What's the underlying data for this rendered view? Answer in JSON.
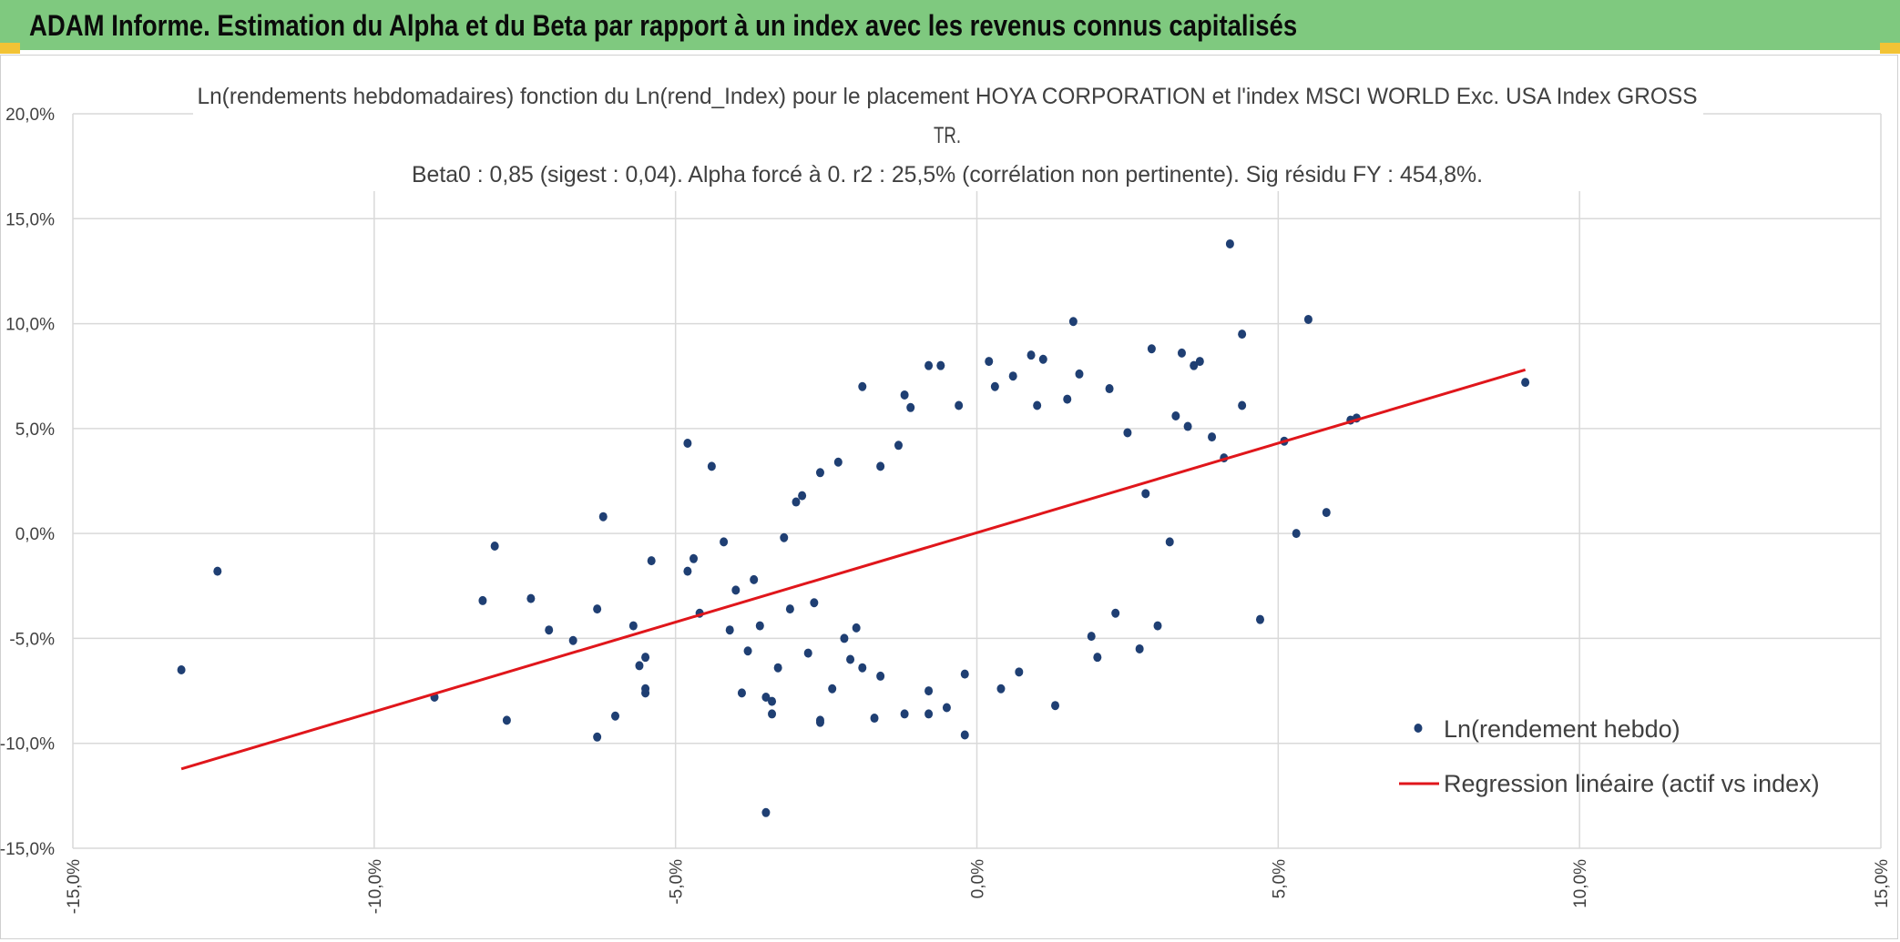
{
  "header": {
    "title": "ADAM Informe. Estimation du Alpha et du Beta par rapport à un index avec les revenus connus capitalisés",
    "background": "#7fc97f"
  },
  "chart_data": {
    "type": "scatter",
    "title_lines": [
      "Ln(rendements hebdomadaires) fonction du Ln(rend_Index) pour le placement HOYA CORPORATION et l'index MSCI WORLD Exc. USA Index GROSS",
      "TR.",
      "Beta0 : 0,85 (sigest : 0,04). Alpha forcé à 0. r2 : 25,5% (corrélation non pertinente). Sig résidu FY : 454,8%."
    ],
    "xlim": [
      -15,
      15
    ],
    "ylim": [
      -15,
      20
    ],
    "x_ticks": [
      -15,
      -10,
      -5,
      0,
      5,
      10,
      15
    ],
    "y_ticks": [
      -15,
      -10,
      -5,
      0,
      5,
      10,
      15,
      20
    ],
    "x_tick_labels": [
      "-15,0%",
      "-10,0%",
      "-5,0%",
      "0,0%",
      "5,0%",
      "10,0%",
      "15,0%"
    ],
    "y_tick_labels": [
      "-15,0%",
      "-10,0%",
      "-5,0%",
      "0,0%",
      "5,0%",
      "10,0%",
      "15,0%",
      "20,0%"
    ],
    "grid": true,
    "legend_position": "bottom-right",
    "series": [
      {
        "name": "Ln(rendement hebdo)",
        "kind": "scatter",
        "color": "#1f3f73",
        "points": [
          [
            -13.2,
            -6.5
          ],
          [
            -12.6,
            -1.8
          ],
          [
            -9.0,
            -7.8
          ],
          [
            -8.2,
            -3.2
          ],
          [
            -8.0,
            -0.6
          ],
          [
            -7.8,
            -8.9
          ],
          [
            -7.4,
            -3.1
          ],
          [
            -7.1,
            -4.6
          ],
          [
            -6.7,
            -5.1
          ],
          [
            -6.3,
            -3.6
          ],
          [
            -6.2,
            0.8
          ],
          [
            -6.3,
            -9.7
          ],
          [
            -6.0,
            -8.7
          ],
          [
            -5.7,
            -4.4
          ],
          [
            -5.6,
            -6.3
          ],
          [
            -5.5,
            -5.9
          ],
          [
            -5.5,
            -7.6
          ],
          [
            -5.5,
            -7.4
          ],
          [
            -5.4,
            -1.3
          ],
          [
            -4.8,
            4.3
          ],
          [
            -4.8,
            -1.8
          ],
          [
            -4.7,
            -1.2
          ],
          [
            -4.6,
            -3.8
          ],
          [
            -4.4,
            3.2
          ],
          [
            -4.2,
            -0.4
          ],
          [
            -4.1,
            -4.6
          ],
          [
            -3.9,
            -7.6
          ],
          [
            -3.8,
            -5.6
          ],
          [
            -3.5,
            -7.8
          ],
          [
            -3.6,
            -4.4
          ],
          [
            -3.5,
            -13.3
          ],
          [
            -3.4,
            -8.6
          ],
          [
            -3.4,
            -8.0
          ],
          [
            -3.3,
            -6.4
          ],
          [
            -3.1,
            -3.6
          ],
          [
            -3.0,
            1.5
          ],
          [
            -2.9,
            1.8
          ],
          [
            -2.8,
            -5.7
          ],
          [
            -2.6,
            -8.9
          ],
          [
            -2.6,
            -9.0
          ],
          [
            -2.4,
            -7.4
          ],
          [
            -2.3,
            3.4
          ],
          [
            -2.1,
            -6.0
          ],
          [
            -2.0,
            -4.5
          ],
          [
            -1.9,
            7.0
          ],
          [
            -1.7,
            -8.8
          ],
          [
            -1.6,
            -6.8
          ],
          [
            -1.6,
            3.2
          ],
          [
            -1.2,
            6.6
          ],
          [
            -1.1,
            6.0
          ],
          [
            -1.2,
            -8.6
          ],
          [
            -0.8,
            -7.5
          ],
          [
            -0.8,
            -8.6
          ],
          [
            -0.8,
            8.0
          ],
          [
            -0.6,
            8.0
          ],
          [
            -0.5,
            -8.3
          ],
          [
            -0.2,
            -9.6
          ],
          [
            0.2,
            8.2
          ],
          [
            0.4,
            -7.4
          ],
          [
            0.6,
            7.5
          ],
          [
            0.9,
            8.5
          ],
          [
            1.1,
            8.3
          ],
          [
            1.3,
            -8.2
          ],
          [
            1.5,
            6.4
          ],
          [
            1.6,
            10.1
          ],
          [
            2.0,
            -5.9
          ],
          [
            2.7,
            -5.5
          ],
          [
            3.0,
            -4.4
          ],
          [
            3.2,
            -0.4
          ],
          [
            3.4,
            8.6
          ],
          [
            3.6,
            8.0
          ],
          [
            3.7,
            8.2
          ],
          [
            4.2,
            13.8
          ],
          [
            4.4,
            9.5
          ],
          [
            4.4,
            6.1
          ],
          [
            4.7,
            -4.1
          ],
          [
            5.1,
            4.4
          ],
          [
            5.3,
            0.0
          ],
          [
            5.5,
            10.2
          ],
          [
            5.8,
            1.0
          ],
          [
            6.2,
            5.4
          ],
          [
            6.3,
            5.5
          ],
          [
            9.1,
            7.2
          ],
          [
            2.9,
            8.8
          ],
          [
            2.2,
            6.9
          ],
          [
            1.7,
            7.6
          ],
          [
            3.9,
            4.6
          ],
          [
            4.1,
            3.6
          ],
          [
            3.3,
            5.6
          ],
          [
            2.5,
            4.8
          ],
          [
            -0.3,
            6.1
          ],
          [
            0.3,
            7.0
          ],
          [
            1.0,
            6.1
          ],
          [
            -2.6,
            2.9
          ],
          [
            -3.2,
            -0.2
          ],
          [
            -4.0,
            -2.7
          ],
          [
            -3.7,
            -2.2
          ],
          [
            -1.3,
            4.2
          ],
          [
            3.5,
            5.1
          ],
          [
            2.8,
            1.9
          ],
          [
            2.3,
            -3.8
          ],
          [
            1.9,
            -4.9
          ],
          [
            -0.2,
            -6.7
          ],
          [
            0.7,
            -6.6
          ],
          [
            -1.9,
            -6.4
          ],
          [
            -2.2,
            -5.0
          ],
          [
            -2.7,
            -3.3
          ]
        ]
      },
      {
        "name": "Regression linéaire (actif vs index)",
        "kind": "line",
        "color": "#e0161b",
        "points": [
          [
            -13.2,
            -11.22
          ],
          [
            9.1,
            7.8
          ]
        ]
      }
    ],
    "colors": {
      "scatter": "#1f3f73",
      "regression": "#e0161b",
      "grid": "#d9d9d9",
      "text": "#404040"
    }
  }
}
